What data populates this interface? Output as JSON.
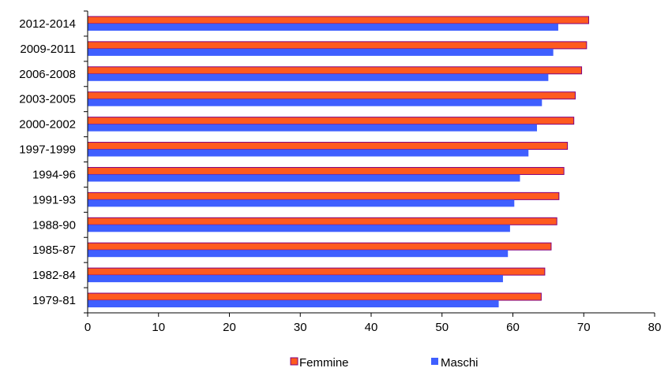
{
  "chart_data": {
    "type": "bar",
    "orientation": "horizontal",
    "categories": [
      "2012-2014",
      "2009-2011",
      "2006-2008",
      "2003-2005",
      "2000-2002",
      "1997-1999",
      "1994-96",
      "1991-93",
      "1988-90",
      "1985-87",
      "1982-84",
      "1979-81"
    ],
    "series": [
      {
        "name": "Femmine",
        "color": "#FF5A1F",
        "border": "#800080",
        "values": [
          70.7,
          70.4,
          69.7,
          68.8,
          68.6,
          67.7,
          67.2,
          66.5,
          66.2,
          65.4,
          64.5,
          64.0
        ]
      },
      {
        "name": "Maschi",
        "color": "#3F5FFF",
        "values": [
          66.4,
          65.7,
          65.0,
          64.1,
          63.4,
          62.2,
          61.0,
          60.2,
          59.6,
          59.3,
          58.6,
          58.0
        ]
      }
    ],
    "xlim": [
      0,
      80
    ],
    "xticks": [
      "0",
      "10",
      "20",
      "30",
      "40",
      "50",
      "60",
      "70",
      "80"
    ],
    "grid": false,
    "legend_position": "bottom",
    "title": "",
    "xlabel": "",
    "ylabel": ""
  }
}
